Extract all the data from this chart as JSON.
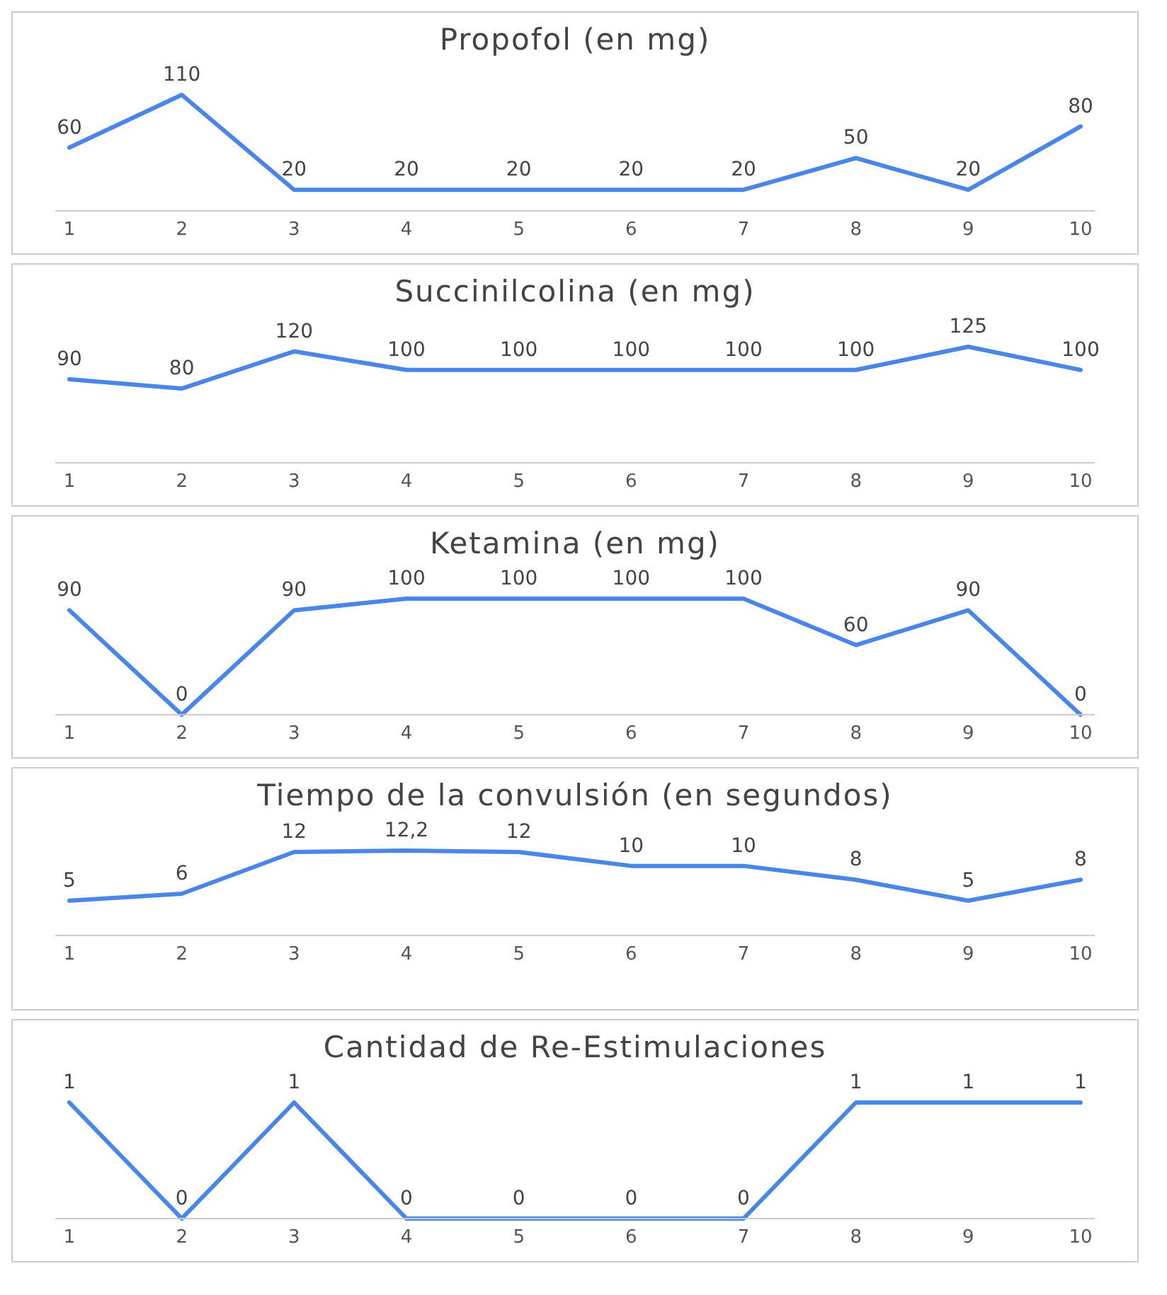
{
  "chart_data": [
    {
      "type": "line",
      "title": "Propofol (en mg)",
      "categories": [
        "1",
        "2",
        "3",
        "4",
        "5",
        "6",
        "7",
        "8",
        "9",
        "10"
      ],
      "values": [
        60,
        110,
        20,
        20,
        20,
        20,
        20,
        50,
        20,
        80
      ],
      "color": "#4a86e8",
      "data_labels": true,
      "grid": false,
      "marker": "none",
      "tick_labels": "x"
    },
    {
      "type": "line",
      "title": "Succinilcolina (en mg)",
      "categories": [
        "1",
        "2",
        "3",
        "4",
        "5",
        "6",
        "7",
        "8",
        "9",
        "10"
      ],
      "values": [
        90,
        80,
        120,
        100,
        100,
        100,
        100,
        100,
        125,
        100
      ],
      "color": "#4a86e8",
      "data_labels": true,
      "grid": false,
      "marker": "none",
      "tick_labels": "x"
    },
    {
      "type": "line",
      "title": "Ketamina (en mg)",
      "categories": [
        "1",
        "2",
        "3",
        "4",
        "5",
        "6",
        "7",
        "8",
        "9",
        "10"
      ],
      "values": [
        90,
        0,
        90,
        100,
        100,
        100,
        100,
        60,
        90,
        0
      ],
      "color": "#4a86e8",
      "data_labels": true,
      "grid": false,
      "marker": "none",
      "tick_labels": "x"
    },
    {
      "type": "line",
      "title": "Tiempo de la convulsión (en segundos)",
      "categories": [
        "1",
        "2",
        "3",
        "4",
        "5",
        "6",
        "7",
        "8",
        "9",
        "10"
      ],
      "values": [
        5,
        6,
        12,
        12.2,
        12,
        10,
        10,
        8,
        5,
        8
      ],
      "value_labels": [
        "5",
        "6",
        "12",
        "12,2",
        "12",
        "10",
        "10",
        "8",
        "5",
        "8"
      ],
      "color": "#4a86e8",
      "grid": false,
      "marker": "none",
      "tick_labels": "x"
    },
    {
      "type": "line",
      "title": "Cantidad de Re-Estimulaciones",
      "categories": [
        "1",
        "2",
        "3",
        "4",
        "5",
        "6",
        "7",
        "8",
        "9",
        "10"
      ],
      "values": [
        1,
        0,
        1,
        0,
        0,
        0,
        0,
        1,
        1,
        1
      ],
      "color": "#4a86e8",
      "data_labels": true,
      "grid": false,
      "marker": "none",
      "tick_labels": "x"
    }
  ]
}
